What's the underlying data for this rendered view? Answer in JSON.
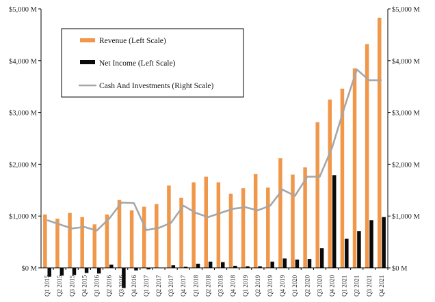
{
  "colors": {
    "revenue": "#F0974A",
    "net_income": "#0A0A0A",
    "cash": "#A6A6A6",
    "axis": "#000000"
  },
  "chart_data": {
    "type": "bar",
    "title": "",
    "legend_position": "top-left (inset)",
    "grid": false,
    "categories": [
      "Q1 2015",
      "Q2 2015",
      "Q3 2015",
      "Q4 2015",
      "Q1 2016",
      "Q2 2016",
      "Q3 2016",
      "Q4 2016",
      "Q1 2017",
      "Q2 2017",
      "Q3 2017",
      "Q4 2017",
      "Q1 2018",
      "Q2 2018",
      "Q3 2018",
      "Q4 2018",
      "Q1 2019",
      "Q2 2019",
      "Q3 2019",
      "Q4 2019",
      "Q1 2020",
      "Q2 2020",
      "Q3 2020",
      "Q4 2020",
      "Q1 2021",
      "Q2 2021",
      "Q3 2021",
      "Q4 2021"
    ],
    "left_axis": {
      "ylim": [
        0,
        5000
      ],
      "ticks": [
        0,
        1000,
        2000,
        3000,
        4000,
        5000
      ],
      "tick_labels": [
        "$0 M",
        "$1,000 M",
        "$2,000 M",
        "$3,000 M",
        "$4,000 M",
        "$5,000 M"
      ]
    },
    "right_axis": {
      "ylim": [
        0,
        5000
      ],
      "ticks": [
        0,
        1000,
        2000,
        3000,
        4000,
        5000
      ],
      "tick_labels": [
        "$0 M",
        "$1,000 M",
        "$2,000 M",
        "$3,000 M",
        "$4,000 M",
        "$5,000 M"
      ]
    },
    "series": [
      {
        "name": "Revenue (Left Scale)",
        "type": "bar",
        "axis": "left",
        "values": [
          1030,
          950,
          1060,
          980,
          840,
          1030,
          1310,
          1110,
          1180,
          1230,
          1590,
          1350,
          1650,
          1760,
          1650,
          1430,
          1540,
          1810,
          1550,
          2120,
          1800,
          1940,
          2810,
          3250,
          3460,
          3850,
          4320,
          4830
        ]
      },
      {
        "name": "Net Income (Left Scale)",
        "type": "bar",
        "axis": "left",
        "values": [
          -170,
          -150,
          -140,
          -100,
          -110,
          60,
          -390,
          -50,
          -30,
          0,
          50,
          20,
          80,
          120,
          110,
          40,
          30,
          30,
          120,
          180,
          160,
          170,
          380,
          1790,
          560,
          710,
          920,
          980
        ]
      },
      {
        "name": "Cash And Investments (Right Scale)",
        "type": "line",
        "axis": "right",
        "values": [
          920,
          840,
          760,
          790,
          720,
          950,
          1260,
          1250,
          730,
          770,
          870,
          1200,
          1060,
          980,
          1060,
          1140,
          1170,
          1110,
          1200,
          1510,
          1390,
          1760,
          1760,
          2320,
          3100,
          3830,
          3620,
          3620
        ]
      }
    ]
  }
}
